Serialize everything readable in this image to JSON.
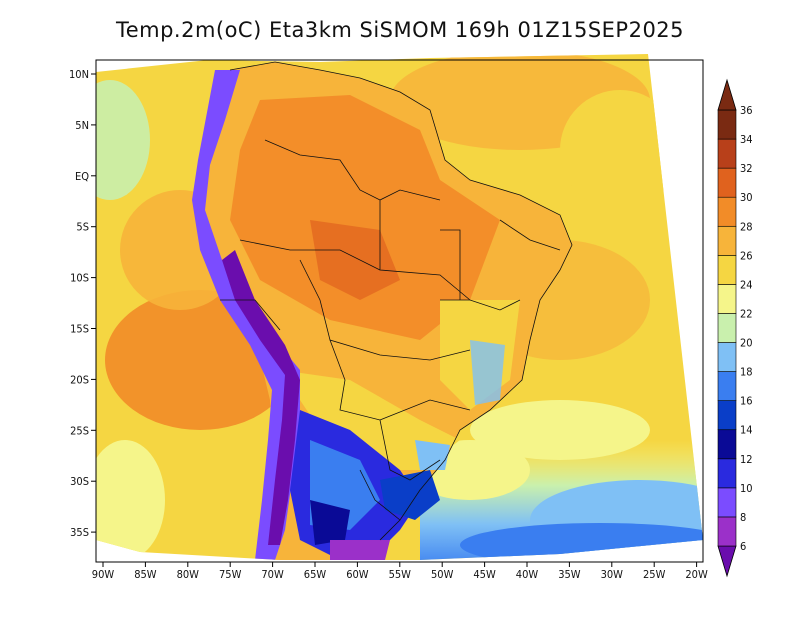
{
  "title": "Temp.2m(oC) Eta3km SiSMOM 169h 01Z15SEP2025",
  "x_ticks": [
    "90W",
    "85W",
    "80W",
    "75W",
    "70W",
    "65W",
    "60W",
    "55W",
    "50W",
    "45W",
    "40W",
    "35W",
    "30W",
    "25W",
    "20W"
  ],
  "y_ticks": [
    "10N",
    "5N",
    "EQ",
    "5S",
    "10S",
    "15S",
    "20S",
    "25S",
    "30S",
    "35S"
  ],
  "colorbar": {
    "labels": [
      "6",
      "8",
      "10",
      "12",
      "14",
      "16",
      "18",
      "20",
      "22",
      "24",
      "26",
      "28",
      "30",
      "32",
      "34",
      "36"
    ],
    "colors": [
      "#6a0dad",
      "#9b30c9",
      "#7b4cff",
      "#2a2adf",
      "#0a0a96",
      "#0a3ec8",
      "#3a7ef0",
      "#7fc0f5",
      "#c9f0ad",
      "#f5f58a",
      "#f5d642",
      "#f7b43a",
      "#f28c28",
      "#e0621e",
      "#b8401a",
      "#7a2a12"
    ]
  }
}
